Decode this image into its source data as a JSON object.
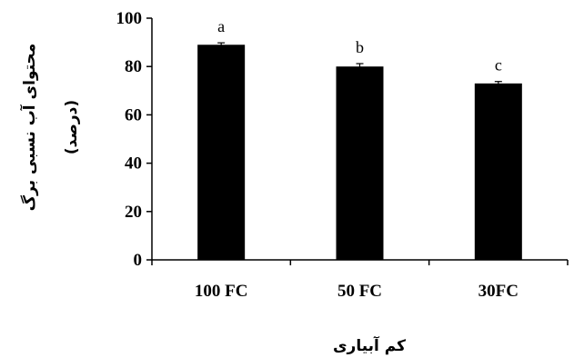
{
  "chart_data": {
    "type": "bar",
    "categories": [
      "100 FC",
      "50 FC",
      "30FC"
    ],
    "values": [
      89,
      80,
      73
    ],
    "errors": [
      0.8,
      1.2,
      0.8
    ],
    "significance_letters": [
      "a",
      "b",
      "c"
    ],
    "title": "",
    "xlabel": "کم آبیاری",
    "ylabel_line1": "محتوای آب نسبی برگ",
    "ylabel_line2": "(درصد)",
    "ylim": [
      0,
      100
    ],
    "yticks": [
      "0",
      "20",
      "40",
      "60",
      "80",
      "100"
    ],
    "grid": false,
    "legend": "none",
    "bar_color": "#000000"
  }
}
